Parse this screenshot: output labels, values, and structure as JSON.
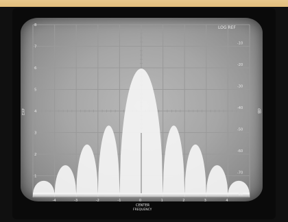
{
  "scale_label": "LOG  REF",
  "left_axis_label": "EXP",
  "right_axis_label": "dB",
  "center_label": "CENTER",
  "center_sublabel": "FREQUENCY",
  "left_ticks": [
    "8",
    "7",
    "6",
    "5",
    "4",
    "3",
    "2",
    "1"
  ],
  "right_ticks": [
    "-10",
    "-20",
    "-30",
    "-40",
    "-50",
    "-60",
    "-70",
    "-80"
  ],
  "bottom_ticks": [
    "-4",
    "-3",
    "-2",
    "-1",
    "0",
    "1",
    "2",
    "3",
    "4"
  ],
  "trace_color": "#f4f4f4",
  "graticule_color": "#9a9a9a",
  "spectrum_lobes": [
    {
      "offset": -4.5,
      "level": 0.08
    },
    {
      "offset": -3.5,
      "level": 0.17
    },
    {
      "offset": -2.5,
      "level": 0.29
    },
    {
      "offset": -1.5,
      "level": 0.4
    },
    {
      "offset": 0,
      "level": 0.73
    },
    {
      "offset": 1.5,
      "level": 0.4
    },
    {
      "offset": 2.5,
      "level": 0.29
    },
    {
      "offset": 3.5,
      "level": 0.17
    },
    {
      "offset": 4.5,
      "level": 0.08
    }
  ]
}
